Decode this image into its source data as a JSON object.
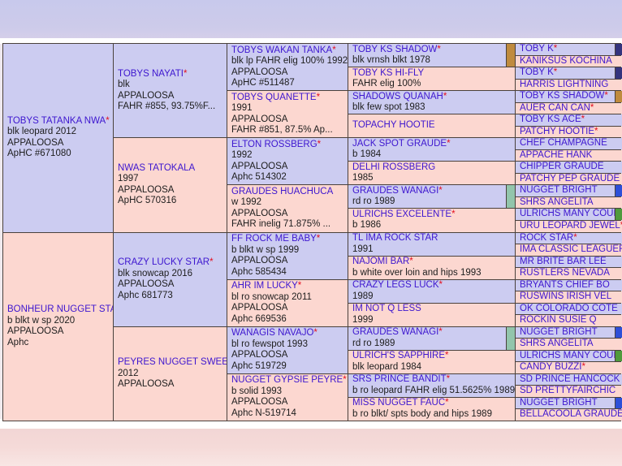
{
  "page": {
    "background_top": "#c8c9ec",
    "background_bottom": "#f8e6e4",
    "table_band": "#ffffff",
    "grid_line": "#4a413c"
  },
  "cell_colors": {
    "sire": "#ccccf1",
    "dam": "#fcd7d0"
  },
  "text_colors": {
    "name_link": "#3d16cf",
    "detail": "#1d1d1d",
    "star": "#e40f1f"
  },
  "bar_colors": {
    "navy": "#34347e",
    "tan": "#bf8b3e",
    "blue": "#2d4fd8",
    "green": "#4f9a3d",
    "teal": "#92c5ab"
  },
  "generations": [
    {
      "label": "subject",
      "cells": [
        {
          "name": "TOBYS TATANKA NWA",
          "star": "*",
          "shade": "sire",
          "details": [
            "blk leopard 2012",
            "APPALOOSA",
            "ApHC #671080"
          ],
          "bar": null
        },
        {
          "name": "BONHEUR NUGGET STAR",
          "star": "*",
          "shade": "dam",
          "details": [
            "b blkt w sp 2020",
            "APPALOOSA",
            "Aphc"
          ],
          "bar": null
        }
      ]
    },
    {
      "label": "parents",
      "cells": [
        {
          "name": "TOBYS NAYATI",
          "star": "*",
          "shade": "sire",
          "details": [
            "blk",
            "APPALOOSA",
            "FAHR #855, 93.75%F..."
          ],
          "bar": null
        },
        {
          "name": "NWAS TATOKALA",
          "star": "",
          "shade": "dam",
          "details": [
            "1997",
            "APPALOOSA",
            "ApHC 570316"
          ],
          "bar": null
        },
        {
          "name": "CRAZY LUCKY STAR",
          "star": "*",
          "shade": "sire",
          "details": [
            "blk snowcap 2016",
            "APPALOOSA",
            "Aphc 681773"
          ],
          "bar": null
        },
        {
          "name": "PEYRES NUGGET SWEETY",
          "star": "",
          "shade": "dam",
          "details": [
            "2012",
            "APPALOOSA"
          ],
          "bar": null
        }
      ]
    },
    {
      "label": "grandparents",
      "cells": [
        {
          "name": "TOBYS WAKAN TANKA",
          "star": "*",
          "shade": "sire",
          "details": [
            "blk lp FAHR elig 100% 1992",
            "APPALOOSA",
            "ApHC #511487"
          ],
          "bar": null
        },
        {
          "name": "TOBYS QUANETTE",
          "star": "*",
          "shade": "dam",
          "details": [
            "1991",
            "APPALOOSA",
            "FAHR #851, 87.5% Ap..."
          ],
          "bar": null
        },
        {
          "name": "ELTON ROSSBERG",
          "star": "*",
          "shade": "sire",
          "details": [
            "1992",
            "APPALOOSA",
            "Aphc 514302"
          ],
          "bar": null
        },
        {
          "name": "GRAUDES HUACHUCA",
          "star": "",
          "shade": "dam",
          "details": [
            "w 1992",
            "APPALOOSA",
            "FAHR inelig 71.875% ..."
          ],
          "bar": null
        },
        {
          "name": "FF ROCK ME BABY",
          "star": "*",
          "shade": "sire",
          "details": [
            "b blkt w sp 1999",
            "APPALOOSA",
            "Aphc 585434"
          ],
          "bar": null
        },
        {
          "name": "AHR IM LUCKY",
          "star": "*",
          "shade": "dam",
          "details": [
            "bl ro snowcap 2011",
            "APPALOOSA",
            "Aphc 669536"
          ],
          "bar": null
        },
        {
          "name": "WANAGIS NAVAJO",
          "star": "*",
          "shade": "sire",
          "details": [
            "bl ro fewspot 1993",
            "APPALOOSA",
            "Aphc 519729"
          ],
          "bar": null
        },
        {
          "name": "NUGGET GYPSIE PEYRE",
          "star": "*",
          "shade": "dam",
          "details": [
            "b solid 1993",
            "APPALOOSA",
            "Aphc N-519714"
          ],
          "bar": null
        }
      ]
    },
    {
      "label": "great-grandparents",
      "cells": [
        {
          "name": "TOBY KS SHADOW",
          "star": "*",
          "shade": "sire",
          "details": [
            "blk vrnsh blkt 1978"
          ],
          "bar": "tan"
        },
        {
          "name": "TOBY KS HI-FLY",
          "star": "",
          "shade": "dam",
          "details": [
            "FAHR elig 100%"
          ],
          "bar": null
        },
        {
          "name": "SHADOWS QUANAH",
          "star": "*",
          "shade": "sire",
          "details": [
            "blk few spot 1983"
          ],
          "bar": null
        },
        {
          "name": "TOPACHY HOOTIE",
          "star": "",
          "shade": "dam",
          "details": [],
          "bar": null
        },
        {
          "name": "JACK SPOT GRAUDE",
          "star": "*",
          "shade": "sire",
          "details": [
            "b 1984"
          ],
          "bar": null
        },
        {
          "name": "DELHI ROSSBERG",
          "star": "",
          "shade": "dam",
          "details": [
            "1985"
          ],
          "bar": null
        },
        {
          "name": "GRAUDES WANAGI",
          "star": "*",
          "shade": "sire",
          "details": [
            "rd ro 1989"
          ],
          "bar": "teal"
        },
        {
          "name": "ULRICHS EXCELENTE",
          "star": "*",
          "shade": "dam",
          "details": [
            "b 1986"
          ],
          "bar": null
        },
        {
          "name": "TL IMA ROCK STAR",
          "star": "",
          "shade": "sire",
          "details": [
            "1991"
          ],
          "bar": null
        },
        {
          "name": "NAJOMI BAR",
          "star": "*",
          "shade": "dam",
          "details": [
            "b white over loin and hips 1993"
          ],
          "bar": null
        },
        {
          "name": "CRAZY LEGS LUCK",
          "star": "*",
          "shade": "sire",
          "details": [
            "1989"
          ],
          "bar": null
        },
        {
          "name": "IM NOT Q LESS",
          "star": "",
          "shade": "dam",
          "details": [
            "1999"
          ],
          "bar": null
        },
        {
          "name": "GRAUDES WANAGI",
          "star": "*",
          "shade": "sire",
          "details": [
            "rd ro 1989"
          ],
          "bar": "teal"
        },
        {
          "name": "ULRICH'S SAPPHIRE",
          "star": "*",
          "shade": "dam",
          "details": [
            "blk leopard 1984"
          ],
          "bar": null
        },
        {
          "name": "SRS PRINCE BANDIT",
          "star": "*",
          "shade": "sire",
          "details": [
            "b ro leopard FAHR elig 51.5625% 1989"
          ],
          "bar": null
        },
        {
          "name": "MISS NUGGET FAUC",
          "star": "*",
          "shade": "dam",
          "details": [
            "b ro blkt/ spts body and hips 1989"
          ],
          "bar": null
        }
      ]
    },
    {
      "label": "great-great-grandparents",
      "cells": [
        {
          "name": "TOBY K",
          "star": "*",
          "shade": "sire",
          "details": [],
          "bar": "navy"
        },
        {
          "name": "KANIKSUS KOCHINA",
          "star": "",
          "shade": "dam",
          "details": [],
          "bar": null
        },
        {
          "name": "TOBY K",
          "star": "*",
          "shade": "sire",
          "details": [],
          "bar": "navy"
        },
        {
          "name": "HARRIS LIGHTNING",
          "star": "",
          "shade": "dam",
          "details": [],
          "bar": null
        },
        {
          "name": "TOBY KS SHADOW",
          "star": "*",
          "shade": "sire",
          "details": [],
          "bar": "tan"
        },
        {
          "name": "AUER CAN CAN",
          "star": "*",
          "shade": "dam",
          "details": [],
          "bar": null
        },
        {
          "name": "TOBY KS ACE",
          "star": "*",
          "shade": "sire",
          "details": [],
          "bar": null
        },
        {
          "name": "PATCHY HOOTIE",
          "star": "*",
          "shade": "dam",
          "details": [],
          "bar": null
        },
        {
          "name": "CHEF CHAMPAGNE",
          "star": "",
          "shade": "sire",
          "details": [],
          "bar": null
        },
        {
          "name": "APPACHE HANK",
          "star": "",
          "shade": "dam",
          "details": [],
          "bar": null
        },
        {
          "name": "CHIPPER GRAUDE",
          "star": "",
          "shade": "sire",
          "details": [],
          "bar": null
        },
        {
          "name": "PATCHY PEP GRAUDE",
          "star": "",
          "shade": "dam",
          "details": [],
          "bar": null
        },
        {
          "name": "NUGGET BRIGHT",
          "star": "",
          "shade": "sire",
          "details": [],
          "bar": "blue"
        },
        {
          "name": "SHRS ANGELITA",
          "star": "",
          "shade": "dam",
          "details": [],
          "bar": null
        },
        {
          "name": "ULRICHS MANY COUPS",
          "star": "*",
          "shade": "sire",
          "details": [],
          "bar": "green"
        },
        {
          "name": "URU LEOPARD JEWEL",
          "star": "*",
          "shade": "dam",
          "details": [],
          "bar": null
        },
        {
          "name": "ROCK STAR",
          "star": "*",
          "shade": "sire",
          "details": [],
          "bar": null
        },
        {
          "name": "IMA CLASSIC LEAGUER",
          "star": "",
          "shade": "dam",
          "details": [],
          "bar": null
        },
        {
          "name": "MR BRITE BAR LEE",
          "star": "",
          "shade": "sire",
          "details": [],
          "bar": null
        },
        {
          "name": "RUSTLERS NEVADA",
          "star": "",
          "shade": "dam",
          "details": [],
          "bar": null
        },
        {
          "name": "BRYANTS CHIEF BO",
          "star": "",
          "shade": "sire",
          "details": [],
          "bar": null
        },
        {
          "name": "RUSWINS IRISH VEL",
          "star": "",
          "shade": "dam",
          "details": [],
          "bar": null
        },
        {
          "name": "OK COLORADO COTE",
          "star": "",
          "shade": "sire",
          "details": [],
          "bar": null
        },
        {
          "name": "ROCKIN SUSIE Q",
          "star": "",
          "shade": "dam",
          "details": [],
          "bar": null
        },
        {
          "name": "NUGGET BRIGHT",
          "star": "",
          "shade": "sire",
          "details": [],
          "bar": "blue"
        },
        {
          "name": "SHRS ANGELITA",
          "star": "",
          "shade": "dam",
          "details": [],
          "bar": null
        },
        {
          "name": "ULRICHS MANY COUPS",
          "star": "*",
          "shade": "sire",
          "details": [],
          "bar": "green"
        },
        {
          "name": "CANDY BUZZI",
          "star": "*",
          "shade": "dam",
          "details": [],
          "bar": null
        },
        {
          "name": "SD PRINCE HANCOCK",
          "star": "",
          "shade": "sire",
          "details": [],
          "bar": null
        },
        {
          "name": "SD PRETTYFAIRCHIC",
          "star": "",
          "shade": "dam",
          "details": [],
          "bar": null
        },
        {
          "name": "NUGGET BRIGHT",
          "star": "",
          "shade": "sire",
          "details": [],
          "bar": "blue"
        },
        {
          "name": "BELLACOOLA GRAUDE",
          "star": "",
          "shade": "dam",
          "details": [],
          "bar": null
        }
      ]
    }
  ]
}
